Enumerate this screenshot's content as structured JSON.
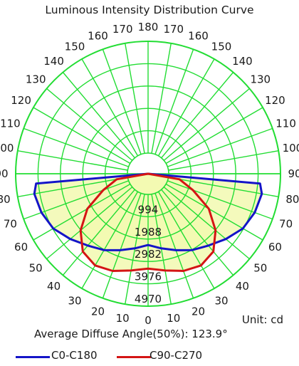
{
  "chart_data": {
    "type": "polar",
    "title": "Luminous Intensity Distribution Curve",
    "radial_ticks": [
      "994",
      "1988",
      "2982",
      "3976",
      "4970"
    ],
    "radial_values": [
      994,
      1988,
      2982,
      3976,
      4970
    ],
    "rmax": 4970,
    "angle_ticks_left": [
      "0",
      "10",
      "20",
      "30",
      "40",
      "50",
      "60",
      "70",
      "80",
      "90",
      "100",
      "110",
      "120",
      "130",
      "140",
      "150",
      "160",
      "170",
      "180"
    ],
    "angle_ticks_right": [
      "10",
      "20",
      "30",
      "40",
      "50",
      "60",
      "70",
      "80",
      "90",
      "100",
      "110",
      "120",
      "130",
      "140",
      "150",
      "160",
      "170"
    ],
    "unit_label": "Unit: cd",
    "average_diffuse_angle": "Average Diffuse Angle(50%): 123.9°",
    "series": [
      {
        "name": "C0-C180",
        "color": "#1414c8",
        "angles": [
          0,
          10,
          20,
          30,
          40,
          50,
          60,
          70,
          80,
          85,
          90
        ],
        "values": [
          2250,
          2450,
          2700,
          3000,
          3250,
          3600,
          3950,
          4130,
          4220,
          4080,
          0
        ]
      },
      {
        "name": "C90-C270",
        "color": "#d41414",
        "angles": [
          0,
          10,
          20,
          30,
          40,
          50,
          60,
          70,
          80,
          90
        ],
        "values": [
          3300,
          3450,
          3680,
          3790,
          3600,
          3000,
          2200,
          1200,
          500,
          0
        ]
      }
    ]
  },
  "colors": {
    "grid": "#22dd33",
    "fill": "#f2f9b0",
    "background": "#ffffff"
  }
}
